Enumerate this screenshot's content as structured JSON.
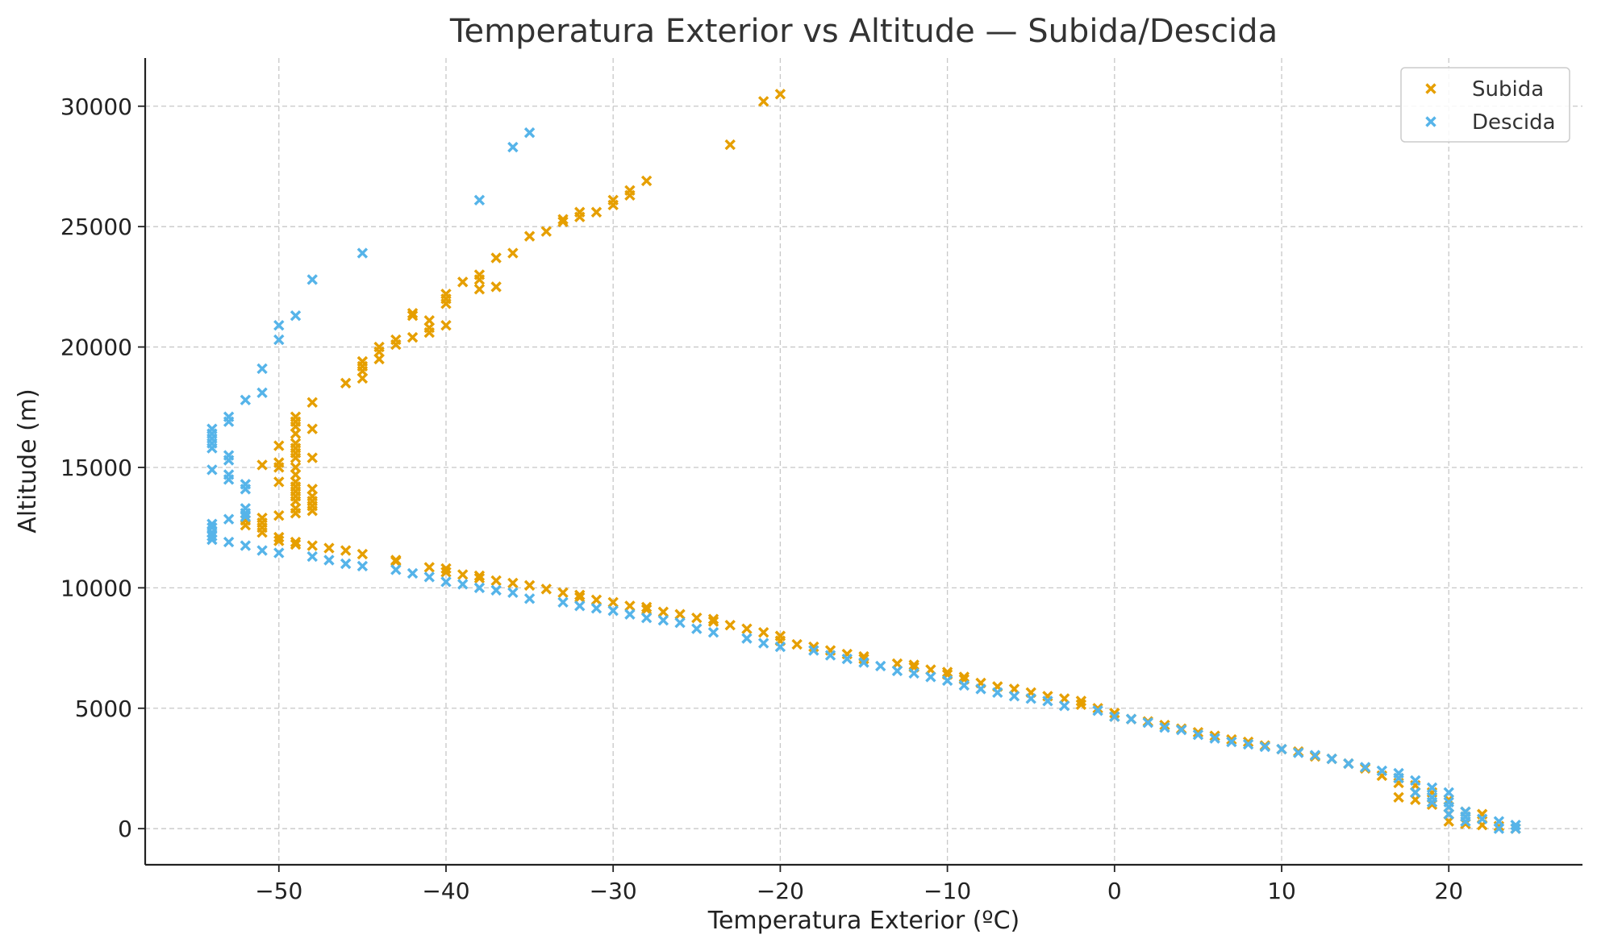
{
  "chart_data": {
    "type": "scatter",
    "title": "Temperatura Exterior vs Altitude — Subida/Descida",
    "xlabel": "Temperatura Exterior (ºC)",
    "ylabel": "Altitude (m)",
    "xlim": [
      -58,
      28
    ],
    "ylim": [
      -1500,
      32000
    ],
    "xticks": [
      -50,
      -40,
      -30,
      -20,
      -10,
      0,
      10,
      20
    ],
    "xtick_labels": [
      "−50",
      "−40",
      "−30",
      "−20",
      "−10",
      "0",
      "10",
      "20"
    ],
    "yticks": [
      0,
      5000,
      10000,
      15000,
      20000,
      25000,
      30000
    ],
    "ytick_labels": [
      "0",
      "5000",
      "10000",
      "15000",
      "20000",
      "25000",
      "30000"
    ],
    "grid": true,
    "legend_position": "top-right",
    "marker": "x",
    "series": [
      {
        "name": "Subida",
        "color": "#E69F00",
        "points": [
          [
            24,
            0
          ],
          [
            23,
            100
          ],
          [
            22,
            150
          ],
          [
            22,
            600
          ],
          [
            21,
            200
          ],
          [
            21,
            500
          ],
          [
            21,
            700
          ],
          [
            20,
            300
          ],
          [
            20,
            600
          ],
          [
            20,
            900
          ],
          [
            20,
            1200
          ],
          [
            19,
            1000
          ],
          [
            19,
            1300
          ],
          [
            19,
            1500
          ],
          [
            18,
            1200
          ],
          [
            18,
            1500
          ],
          [
            18,
            1800
          ],
          [
            17,
            1300
          ],
          [
            17,
            1900
          ],
          [
            17,
            2100
          ],
          [
            16,
            2200
          ],
          [
            15,
            2500
          ],
          [
            14,
            2700
          ],
          [
            13,
            2900
          ],
          [
            12,
            3000
          ],
          [
            11,
            3200
          ],
          [
            10,
            3300
          ],
          [
            9,
            3450
          ],
          [
            8,
            3600
          ],
          [
            7,
            3700
          ],
          [
            6,
            3850
          ],
          [
            5,
            4000
          ],
          [
            4,
            4150
          ],
          [
            3,
            4300
          ],
          [
            2,
            4450
          ],
          [
            1,
            4550
          ],
          [
            0,
            4650
          ],
          [
            0,
            4800
          ],
          [
            -1,
            5000
          ],
          [
            -2,
            5150
          ],
          [
            -2,
            5300
          ],
          [
            -3,
            5400
          ],
          [
            -4,
            5500
          ],
          [
            -5,
            5650
          ],
          [
            -6,
            5800
          ],
          [
            -7,
            5900
          ],
          [
            -8,
            6050
          ],
          [
            -9,
            6200
          ],
          [
            -9,
            6300
          ],
          [
            -10,
            6400
          ],
          [
            -10,
            6500
          ],
          [
            -11,
            6600
          ],
          [
            -12,
            6700
          ],
          [
            -12,
            6800
          ],
          [
            -13,
            6850
          ],
          [
            -15,
            7050
          ],
          [
            -15,
            7150
          ],
          [
            -16,
            7250
          ],
          [
            -17,
            7400
          ],
          [
            -18,
            7550
          ],
          [
            -19,
            7650
          ],
          [
            -20,
            7800
          ],
          [
            -20,
            8000
          ],
          [
            -21,
            8150
          ],
          [
            -22,
            8300
          ],
          [
            -23,
            8450
          ],
          [
            -24,
            8600
          ],
          [
            -24,
            8700
          ],
          [
            -25,
            8750
          ],
          [
            -26,
            8900
          ],
          [
            -27,
            9000
          ],
          [
            -28,
            9100
          ],
          [
            -28,
            9200
          ],
          [
            -29,
            9250
          ],
          [
            -30,
            9400
          ],
          [
            -31,
            9500
          ],
          [
            -32,
            9600
          ],
          [
            -32,
            9700
          ],
          [
            -33,
            9800
          ],
          [
            -34,
            9950
          ],
          [
            -35,
            10100
          ],
          [
            -36,
            10200
          ],
          [
            -37,
            10300
          ],
          [
            -38,
            10400
          ],
          [
            -38,
            10500
          ],
          [
            -39,
            10550
          ],
          [
            -40,
            10650
          ],
          [
            -40,
            10800
          ],
          [
            -41,
            10850
          ],
          [
            -43,
            11100
          ],
          [
            -43,
            11150
          ],
          [
            -45,
            11400
          ],
          [
            -46,
            11550
          ],
          [
            -47,
            11650
          ],
          [
            -48,
            11750
          ],
          [
            -49,
            11800
          ],
          [
            -49,
            11900
          ],
          [
            -50,
            11950
          ],
          [
            -50,
            12100
          ],
          [
            -51,
            12300
          ],
          [
            -51,
            12500
          ],
          [
            -51,
            12700
          ],
          [
            -51,
            12900
          ],
          [
            -52,
            12600
          ],
          [
            -52,
            12800
          ],
          [
            -50,
            13000
          ],
          [
            -50,
            14400
          ],
          [
            -50,
            15000
          ],
          [
            -50,
            15200
          ],
          [
            -50,
            15900
          ],
          [
            -51,
            15100
          ],
          [
            -49,
            13100
          ],
          [
            -49,
            13300
          ],
          [
            -49,
            13600
          ],
          [
            -49,
            13800
          ],
          [
            -49,
            14000
          ],
          [
            -49,
            14200
          ],
          [
            -49,
            14400
          ],
          [
            -49,
            14700
          ],
          [
            -49,
            15000
          ],
          [
            -49,
            15400
          ],
          [
            -49,
            15600
          ],
          [
            -49,
            15800
          ],
          [
            -49,
            16000
          ],
          [
            -49,
            16400
          ],
          [
            -49,
            16700
          ],
          [
            -49,
            16900
          ],
          [
            -49,
            17100
          ],
          [
            -48,
            13200
          ],
          [
            -48,
            13400
          ],
          [
            -48,
            13600
          ],
          [
            -48,
            13800
          ],
          [
            -48,
            14100
          ],
          [
            -48,
            15400
          ],
          [
            -48,
            16600
          ],
          [
            -48,
            17700
          ],
          [
            -46,
            18500
          ],
          [
            -45,
            18700
          ],
          [
            -45,
            19000
          ],
          [
            -45,
            19200
          ],
          [
            -45,
            19400
          ],
          [
            -44,
            19500
          ],
          [
            -44,
            19800
          ],
          [
            -44,
            20000
          ],
          [
            -43,
            20100
          ],
          [
            -43,
            20300
          ],
          [
            -42,
            20400
          ],
          [
            -42,
            21300
          ],
          [
            -42,
            21400
          ],
          [
            -41,
            20600
          ],
          [
            -41,
            20800
          ],
          [
            -41,
            21100
          ],
          [
            -40,
            20900
          ],
          [
            -40,
            21800
          ],
          [
            -40,
            22000
          ],
          [
            -40,
            22200
          ],
          [
            -39,
            22700
          ],
          [
            -38,
            22400
          ],
          [
            -38,
            22800
          ],
          [
            -38,
            23000
          ],
          [
            -37,
            22500
          ],
          [
            -37,
            23700
          ],
          [
            -36,
            23900
          ],
          [
            -35,
            24600
          ],
          [
            -34,
            24800
          ],
          [
            -33,
            25200
          ],
          [
            -33,
            25300
          ],
          [
            -32,
            25400
          ],
          [
            -32,
            25600
          ],
          [
            -31,
            25600
          ],
          [
            -30,
            25900
          ],
          [
            -30,
            26100
          ],
          [
            -29,
            26300
          ],
          [
            -29,
            26500
          ],
          [
            -28,
            26900
          ],
          [
            -23,
            28400
          ],
          [
            -21,
            30200
          ],
          [
            -20,
            30500
          ]
        ]
      },
      {
        "name": "Descida",
        "color": "#56B4E9",
        "points": [
          [
            24,
            0
          ],
          [
            24,
            150
          ],
          [
            23,
            0
          ],
          [
            23,
            300
          ],
          [
            22,
            400
          ],
          [
            21,
            300
          ],
          [
            21,
            500
          ],
          [
            21,
            700
          ],
          [
            20,
            600
          ],
          [
            20,
            900
          ],
          [
            20,
            1100
          ],
          [
            20,
            1500
          ],
          [
            19,
            1100
          ],
          [
            19,
            1300
          ],
          [
            19,
            1700
          ],
          [
            18,
            1500
          ],
          [
            18,
            2000
          ],
          [
            17,
            2100
          ],
          [
            17,
            2300
          ],
          [
            16,
            2400
          ],
          [
            15,
            2550
          ],
          [
            14,
            2700
          ],
          [
            13,
            2900
          ],
          [
            12,
            3050
          ],
          [
            11,
            3150
          ],
          [
            10,
            3300
          ],
          [
            9,
            3400
          ],
          [
            8,
            3500
          ],
          [
            7,
            3600
          ],
          [
            6,
            3750
          ],
          [
            5,
            3900
          ],
          [
            4,
            4100
          ],
          [
            3,
            4200
          ],
          [
            2,
            4400
          ],
          [
            1,
            4550
          ],
          [
            0,
            4650
          ],
          [
            -1,
            4900
          ],
          [
            -3,
            5100
          ],
          [
            -4,
            5300
          ],
          [
            -5,
            5400
          ],
          [
            -6,
            5500
          ],
          [
            -7,
            5650
          ],
          [
            -8,
            5800
          ],
          [
            -9,
            5950
          ],
          [
            -10,
            6150
          ],
          [
            -11,
            6300
          ],
          [
            -12,
            6450
          ],
          [
            -13,
            6550
          ],
          [
            -14,
            6750
          ],
          [
            -15,
            6900
          ],
          [
            -16,
            7050
          ],
          [
            -17,
            7200
          ],
          [
            -18,
            7400
          ],
          [
            -20,
            7550
          ],
          [
            -21,
            7700
          ],
          [
            -22,
            7900
          ],
          [
            -24,
            8150
          ],
          [
            -25,
            8300
          ],
          [
            -26,
            8550
          ],
          [
            -27,
            8650
          ],
          [
            -28,
            8750
          ],
          [
            -29,
            8900
          ],
          [
            -30,
            9050
          ],
          [
            -31,
            9150
          ],
          [
            -32,
            9250
          ],
          [
            -33,
            9400
          ],
          [
            -35,
            9550
          ],
          [
            -36,
            9800
          ],
          [
            -37,
            9900
          ],
          [
            -38,
            10000
          ],
          [
            -39,
            10150
          ],
          [
            -40,
            10250
          ],
          [
            -41,
            10450
          ],
          [
            -42,
            10600
          ],
          [
            -43,
            10750
          ],
          [
            -45,
            10900
          ],
          [
            -46,
            11000
          ],
          [
            -47,
            11150
          ],
          [
            -48,
            11300
          ],
          [
            -50,
            11450
          ],
          [
            -51,
            11550
          ],
          [
            -52,
            11750
          ],
          [
            -53,
            11900
          ],
          [
            -54,
            12000
          ],
          [
            -54,
            12150
          ],
          [
            -54,
            12300
          ],
          [
            -54,
            12500
          ],
          [
            -54,
            12650
          ],
          [
            -53,
            12850
          ],
          [
            -52,
            12950
          ],
          [
            -52,
            13100
          ],
          [
            -52,
            13300
          ],
          [
            -52,
            14100
          ],
          [
            -52,
            14300
          ],
          [
            -53,
            14500
          ],
          [
            -53,
            14700
          ],
          [
            -53,
            15300
          ],
          [
            -53,
            15500
          ],
          [
            -54,
            14900
          ],
          [
            -54,
            15800
          ],
          [
            -54,
            16000
          ],
          [
            -54,
            16200
          ],
          [
            -54,
            16400
          ],
          [
            -54,
            16600
          ],
          [
            -53,
            16900
          ],
          [
            -53,
            17100
          ],
          [
            -52,
            17800
          ],
          [
            -51,
            18100
          ],
          [
            -51,
            19100
          ],
          [
            -50,
            20300
          ],
          [
            -50,
            20900
          ],
          [
            -49,
            21300
          ],
          [
            -48,
            22800
          ],
          [
            -45,
            23900
          ],
          [
            -38,
            26100
          ],
          [
            -36,
            28300
          ],
          [
            -35,
            28900
          ]
        ]
      }
    ]
  }
}
